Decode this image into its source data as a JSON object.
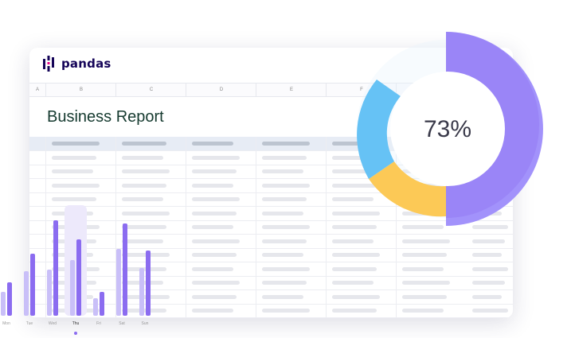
{
  "app": {
    "name": "pandas"
  },
  "sheet": {
    "columns": [
      "A",
      "B",
      "C",
      "D",
      "E",
      "F"
    ],
    "title": "Business Report"
  },
  "bar_days": [
    "Mon",
    "Tue",
    "Wed",
    "Thu",
    "Fri",
    "Sat",
    "Sun"
  ],
  "gauge": {
    "percent_text": "73%",
    "percent": 73
  },
  "colors": {
    "purple": "#8b6cf0",
    "purple_light": "#a592ff",
    "blue": "#66c2f5",
    "yellow": "#fcc956",
    "brand_text": "#150458",
    "title_text": "#153a2f"
  }
}
